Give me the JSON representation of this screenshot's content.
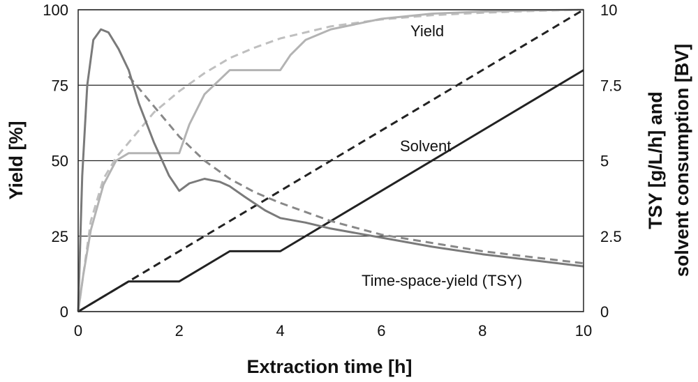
{
  "chart_data": {
    "type": "line",
    "xlabel": "Extraction time [h]",
    "ylabel_left": "Yield [%]",
    "ylabel_right": [
      "TSY [g/L/h] and",
      "solvent consumption [BV]"
    ],
    "xlim": [
      0,
      10
    ],
    "ylim_left": [
      0,
      100
    ],
    "ylim_right": [
      0,
      10
    ],
    "x_ticks": [
      "0",
      "2",
      "4",
      "6",
      "8",
      "10"
    ],
    "y_ticks_left": [
      "0",
      "25",
      "50",
      "75",
      "100"
    ],
    "y_ticks_right": [
      "0",
      "2.5",
      "5",
      "7.5",
      "10"
    ],
    "grid": "horizontal",
    "annotations": {
      "yield": "Yield",
      "solvent": "Solvent",
      "tsy": "Time-space-yield (TSY)"
    },
    "series": [
      {
        "axis": "right",
        "color": "#bfbfbf",
        "dashed": true,
        "points": [
          [
            0,
            0
          ],
          [
            0.25,
            3.0
          ],
          [
            0.5,
            4.4
          ],
          [
            0.75,
            5.1
          ],
          [
            1,
            5.6
          ],
          [
            1.5,
            6.6
          ],
          [
            2,
            7.3
          ],
          [
            2.5,
            7.9
          ],
          [
            3,
            8.4
          ],
          [
            3.5,
            8.75
          ],
          [
            4,
            9.05
          ],
          [
            5,
            9.45
          ],
          [
            6,
            9.68
          ],
          [
            7,
            9.82
          ],
          [
            8,
            9.9
          ],
          [
            9,
            9.96
          ],
          [
            10,
            10
          ]
        ]
      },
      {
        "axis": "left",
        "color": "#b3b3b3",
        "dashed": false,
        "points": [
          [
            0,
            0
          ],
          [
            0.1,
            12
          ],
          [
            0.25,
            27
          ],
          [
            0.5,
            42
          ],
          [
            0.75,
            50
          ],
          [
            1,
            52.5
          ],
          [
            2,
            52.5
          ],
          [
            2.2,
            62
          ],
          [
            2.5,
            72
          ],
          [
            3,
            80
          ],
          [
            4,
            80
          ],
          [
            4.2,
            85
          ],
          [
            4.5,
            90
          ],
          [
            5,
            93.5
          ],
          [
            6,
            97
          ],
          [
            7,
            98.7
          ],
          [
            8,
            99.4
          ],
          [
            9,
            99.8
          ],
          [
            10,
            100
          ]
        ]
      },
      {
        "axis": "right",
        "color": "#222222",
        "dashed": true,
        "points": [
          [
            0,
            0
          ],
          [
            10,
            10
          ]
        ]
      },
      {
        "axis": "right",
        "color": "#222222",
        "dashed": false,
        "points": [
          [
            0,
            0
          ],
          [
            1,
            1
          ],
          [
            2,
            1
          ],
          [
            3,
            2
          ],
          [
            4,
            2
          ],
          [
            10,
            8
          ]
        ]
      },
      {
        "axis": "right",
        "color": "#888888",
        "dashed": true,
        "points": [
          [
            1,
            7.8
          ],
          [
            1.5,
            6.8
          ],
          [
            2,
            5.8
          ],
          [
            2.5,
            5.0
          ],
          [
            3,
            4.4
          ],
          [
            3.5,
            3.95
          ],
          [
            4,
            3.6
          ],
          [
            5,
            3.0
          ],
          [
            6,
            2.55
          ],
          [
            8,
            2.0
          ],
          [
            10,
            1.6
          ]
        ]
      },
      {
        "axis": "right",
        "color": "#7a7a7a",
        "dashed": false,
        "points": [
          [
            0,
            0
          ],
          [
            0.08,
            4.5
          ],
          [
            0.18,
            7.5
          ],
          [
            0.3,
            9.0
          ],
          [
            0.45,
            9.35
          ],
          [
            0.6,
            9.25
          ],
          [
            0.8,
            8.7
          ],
          [
            1,
            8.0
          ],
          [
            1.2,
            6.9
          ],
          [
            1.5,
            5.6
          ],
          [
            1.8,
            4.5
          ],
          [
            2,
            4.0
          ],
          [
            2.2,
            4.25
          ],
          [
            2.5,
            4.4
          ],
          [
            2.8,
            4.3
          ],
          [
            3,
            4.15
          ],
          [
            3.3,
            3.8
          ],
          [
            3.7,
            3.35
          ],
          [
            4,
            3.1
          ],
          [
            4.5,
            2.95
          ],
          [
            5,
            2.75
          ],
          [
            6,
            2.45
          ],
          [
            7,
            2.15
          ],
          [
            8,
            1.9
          ],
          [
            9,
            1.7
          ],
          [
            10,
            1.5
          ]
        ]
      }
    ]
  }
}
